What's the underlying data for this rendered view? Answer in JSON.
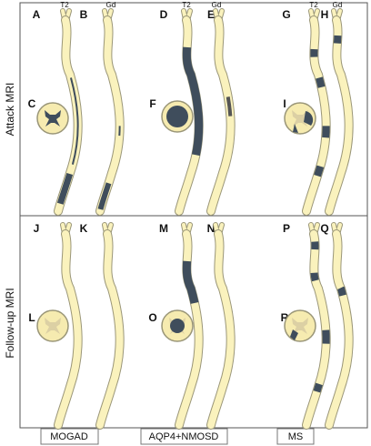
{
  "row_labels": [
    "Attack MRI",
    "Follow-up MRI"
  ],
  "column_labels": [
    "MOGAD",
    "AQP4+NMOSD",
    "MS"
  ],
  "sequence_labels": [
    "T2",
    "Gd",
    "T2",
    "Gd",
    "T2",
    "Gd"
  ],
  "panels": [
    [
      "A",
      "B",
      "C",
      "D",
      "E",
      "F",
      "G",
      "H",
      "I"
    ],
    [
      "J",
      "K",
      "L",
      "M",
      "N",
      "O",
      "P",
      "Q",
      "R"
    ]
  ]
}
